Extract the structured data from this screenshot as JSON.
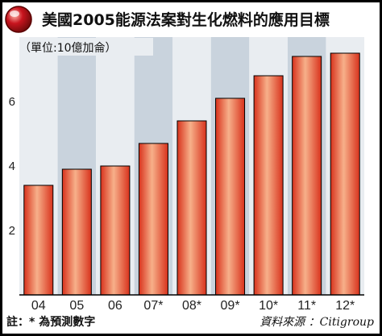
{
  "chart_data": {
    "type": "bar",
    "title": "美國2005能源法案對生化燃料的應用目標",
    "unit_label": "（單位:10億加侖）",
    "categories": [
      "04",
      "05",
      "06",
      "07*",
      "08*",
      "09*",
      "10*",
      "11*",
      "12*"
    ],
    "values": [
      3.4,
      3.9,
      4.0,
      4.7,
      5.4,
      6.1,
      6.8,
      7.4,
      7.5
    ],
    "yticks": [
      2,
      4,
      6
    ],
    "ylim": [
      0,
      8
    ],
    "grid": false,
    "note": "註：* 為預測數字",
    "source": "資料來源 ：Citigroup",
    "colors": {
      "bar": "#d8321c",
      "bar_highlight": "#f7b08a",
      "band_dark": "#c9d3dd",
      "band_light": "#e9edf1",
      "frame": "#000000",
      "title_button": "#c8141e"
    }
  }
}
